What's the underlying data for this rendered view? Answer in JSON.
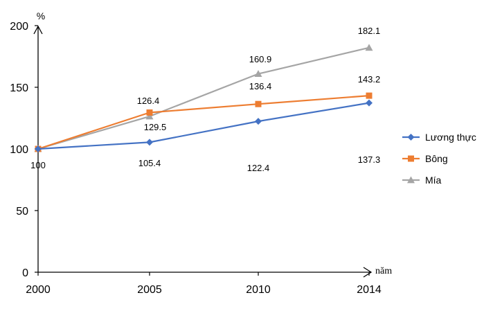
{
  "chart_data": {
    "type": "line",
    "title": "",
    "xlabel": "năm",
    "ylabel": "%",
    "categories": [
      "2000",
      "2005",
      "2010",
      "2014"
    ],
    "x": [
      2000,
      2005,
      2010,
      2014
    ],
    "ylim": [
      0,
      200
    ],
    "yticks": [
      0,
      50,
      100,
      150,
      200
    ],
    "grid": false,
    "legend_position": "right",
    "series": [
      {
        "name": "Lương thực",
        "marker": "diamond",
        "color": "#4472C4",
        "values": [
          100,
          105.4,
          122.4,
          137.3
        ],
        "labels": [
          "100",
          "105.4",
          "122.4",
          "137.3"
        ]
      },
      {
        "name": "Bông",
        "marker": "square",
        "color": "#ED7D31",
        "values": [
          100,
          129.5,
          136.4,
          143.2
        ],
        "labels": [
          "",
          "129.5",
          "136.4",
          "143.2"
        ]
      },
      {
        "name": "Mía",
        "marker": "triangle",
        "color": "#A5A5A5",
        "values": [
          100,
          126.4,
          160.9,
          182.1
        ],
        "labels": [
          "",
          "126.4",
          "160.9",
          "182.1"
        ]
      }
    ]
  }
}
